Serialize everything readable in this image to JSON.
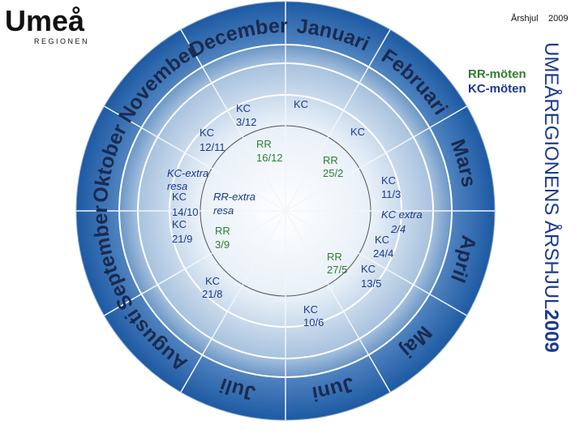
{
  "logo": {
    "name": "Umeå",
    "sub": "REGIONEN"
  },
  "header": {
    "title": "Årshjul",
    "year": "2009"
  },
  "legend": {
    "rr": "RR-möten",
    "kc": "KC-möten"
  },
  "side_title": {
    "text": "UMEÅREGIONENS ÅRSHJUL",
    "year": "2009"
  },
  "months": [
    "Januari",
    "Februari",
    "Mars",
    "April",
    "Maj",
    "Juni",
    "Juli",
    "Augusti",
    "September",
    "Oktober",
    "November",
    "December"
  ],
  "events": [
    {
      "kind": "KC",
      "date": "3/12"
    },
    {
      "kind": "KC"
    },
    {
      "kind": "KC",
      "date": "12/11"
    },
    {
      "kind": "RR",
      "date": "16/12"
    },
    {
      "kind": "KC"
    },
    {
      "kind": "RR",
      "date": "25/2"
    },
    {
      "kind": "KC-extra",
      "date": "resa"
    },
    {
      "kind": "KC",
      "date": "11/3"
    },
    {
      "kind": "KC",
      "date": "14/10"
    },
    {
      "kind": "RR-extra",
      "date": "resa"
    },
    {
      "kind": "KC",
      "date": "21/9"
    },
    {
      "kind": "RR",
      "date": "3/9"
    },
    {
      "kind": "KC extra",
      "date": "2/4"
    },
    {
      "kind": "KC",
      "date": "24/4"
    },
    {
      "kind": "RR",
      "date": "27/5"
    },
    {
      "kind": "KC",
      "date": "13/5"
    },
    {
      "kind": "KC",
      "date": "21/8"
    },
    {
      "kind": "KC",
      "date": "10/6"
    }
  ]
}
